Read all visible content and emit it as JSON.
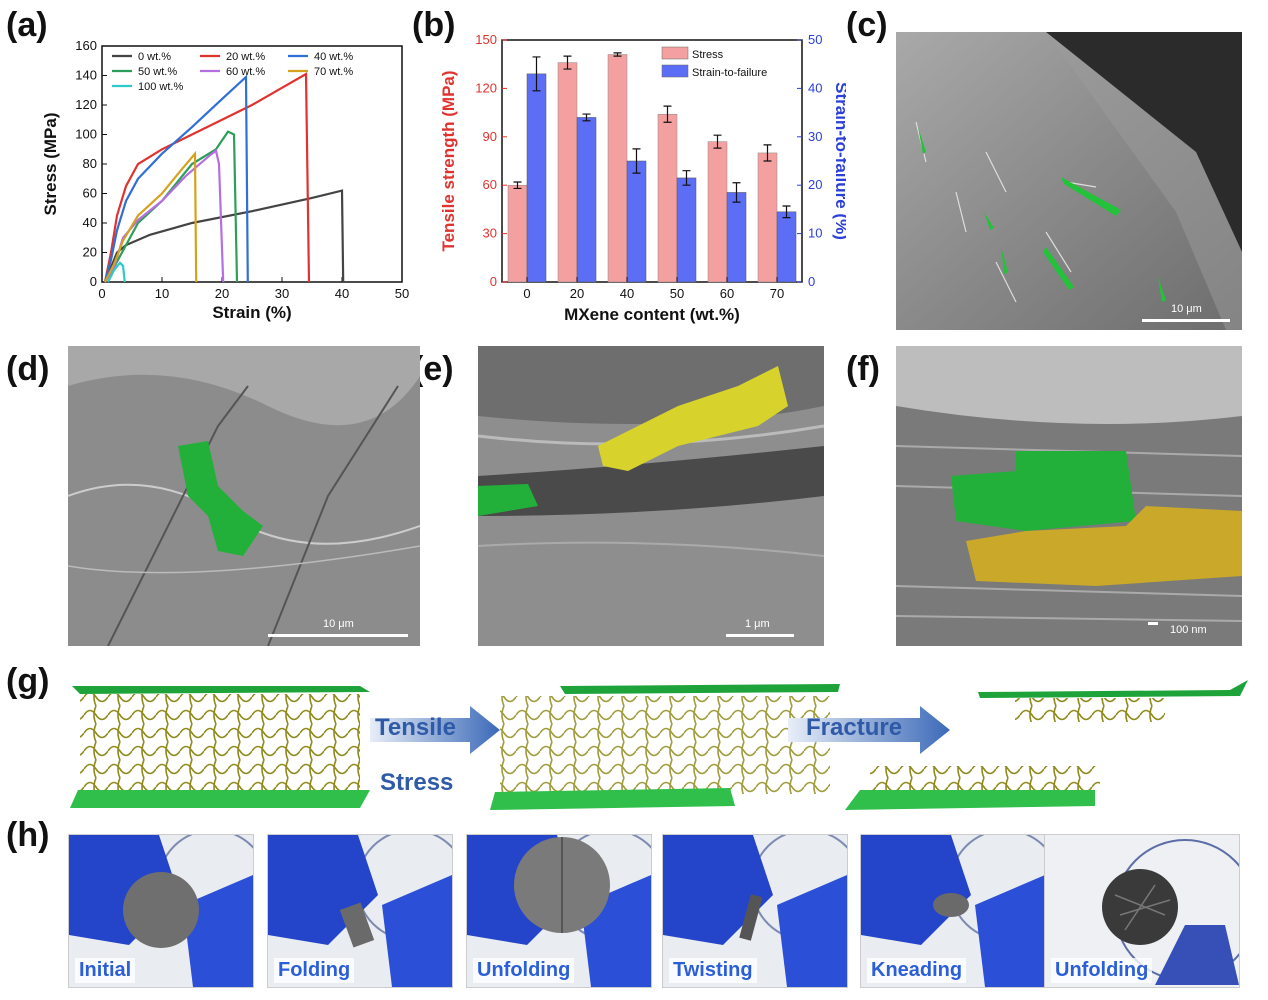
{
  "panels": {
    "a": "(a)",
    "b": "(b)",
    "c": "(c)",
    "d": "(d)",
    "e": "(e)",
    "f": "(f)",
    "g": "(g)",
    "h": "(h)"
  },
  "chart_data": [
    {
      "id": "a",
      "type": "line",
      "xlabel": "Strain (%)",
      "ylabel": "Stress (MPa)",
      "xlim": [
        0,
        50
      ],
      "ylim": [
        0,
        160
      ],
      "xticks": [
        0,
        10,
        20,
        30,
        40,
        50
      ],
      "yticks": [
        0,
        20,
        40,
        60,
        80,
        100,
        120,
        140,
        160
      ],
      "legend_placement": "top",
      "series": [
        {
          "name": "0 wt.%",
          "color": "#444444",
          "points": [
            [
              0.5,
              0
            ],
            [
              1.5,
              10
            ],
            [
              2.5,
              20
            ],
            [
              4,
              25
            ],
            [
              8,
              32
            ],
            [
              15,
              40
            ],
            [
              25,
              48
            ],
            [
              35,
              57
            ],
            [
              40,
              62
            ],
            [
              40.2,
              0
            ]
          ]
        },
        {
          "name": "20 wt.%",
          "color": "#e0332f",
          "points": [
            [
              0.5,
              0
            ],
            [
              1.5,
              20
            ],
            [
              2.5,
              45
            ],
            [
              4,
              65
            ],
            [
              6,
              80
            ],
            [
              10,
              90
            ],
            [
              15,
              100
            ],
            [
              25,
              120
            ],
            [
              34,
              141
            ],
            [
              34.5,
              0
            ]
          ]
        },
        {
          "name": "40 wt.%",
          "color": "#2f6fd6",
          "points": [
            [
              0.5,
              0
            ],
            [
              1.5,
              15
            ],
            [
              2.5,
              35
            ],
            [
              4,
              55
            ],
            [
              6,
              70
            ],
            [
              10,
              87
            ],
            [
              15,
              105
            ],
            [
              20,
              124
            ],
            [
              24,
              139
            ],
            [
              24.3,
              0
            ]
          ]
        },
        {
          "name": "50 wt.%",
          "color": "#2e9e5b",
          "points": [
            [
              0.5,
              0
            ],
            [
              2,
              10
            ],
            [
              4,
              25
            ],
            [
              6,
              40
            ],
            [
              10,
              55
            ],
            [
              15,
              80
            ],
            [
              19,
              90
            ],
            [
              21,
              102
            ],
            [
              22,
              100
            ],
            [
              22.5,
              0
            ]
          ]
        },
        {
          "name": "60 wt.%",
          "color": "#b46fe0",
          "points": [
            [
              0.5,
              0
            ],
            [
              2,
              10
            ],
            [
              3.5,
              30
            ],
            [
              6,
              42
            ],
            [
              10,
              55
            ],
            [
              14,
              72
            ],
            [
              18,
              86
            ],
            [
              19,
              89
            ],
            [
              19.5,
              80
            ],
            [
              20.2,
              0
            ]
          ]
        },
        {
          "name": "70 wt.%",
          "color": "#d6a21e",
          "points": [
            [
              0.5,
              0
            ],
            [
              2,
              12
            ],
            [
              3.5,
              28
            ],
            [
              6,
              45
            ],
            [
              10,
              60
            ],
            [
              13,
              75
            ],
            [
              15.5,
              87
            ],
            [
              15.7,
              0
            ]
          ]
        },
        {
          "name": "100 wt.%",
          "color": "#2ec9c9",
          "points": [
            [
              1,
              0
            ],
            [
              2,
              8
            ],
            [
              3,
              13
            ],
            [
              3.5,
              11
            ],
            [
              3.8,
              0
            ]
          ]
        }
      ]
    },
    {
      "id": "b",
      "type": "bar",
      "xlabel": "MXene content (wt.%)",
      "ylabel": "Tensile strength (MPa)",
      "y2label": "Strain-to-failure (%)",
      "categories": [
        "0",
        "20",
        "40",
        "50",
        "60",
        "70"
      ],
      "ylim": [
        0,
        150
      ],
      "y2lim": [
        0,
        50
      ],
      "yticks": [
        0,
        30,
        60,
        90,
        120,
        150
      ],
      "y2ticks": [
        0,
        10,
        20,
        30,
        40,
        50
      ],
      "legend_placement": "top-right",
      "series": [
        {
          "name": "Stress",
          "axis": "left",
          "color": "#f5a0a0",
          "values": [
            60,
            136,
            141,
            104,
            87,
            80
          ],
          "errors": [
            2,
            4,
            1,
            5,
            4,
            5
          ]
        },
        {
          "name": "Strain-to-failure",
          "axis": "right",
          "color": "#5b6ef5",
          "values": [
            43,
            34,
            25,
            21.5,
            18.5,
            14.5
          ],
          "errors": [
            3.5,
            0.7,
            2.5,
            1.5,
            2,
            1.2
          ]
        }
      ]
    }
  ],
  "sem": {
    "c": {
      "scale": "10 μm"
    },
    "d": {
      "scale": "10 μm"
    },
    "e": {
      "scale": "1 μm"
    },
    "f": {
      "scale": "100 nm"
    }
  },
  "schematic": {
    "arrow1_line1": "Tensile",
    "arrow1_line2": "Stress",
    "arrow2": "Fracture"
  },
  "photos": [
    {
      "caption": "Initial"
    },
    {
      "caption": "Folding"
    },
    {
      "caption": "Unfolding"
    },
    {
      "caption": "Twisting"
    },
    {
      "caption": "Kneading"
    },
    {
      "caption": "Unfolding"
    }
  ]
}
